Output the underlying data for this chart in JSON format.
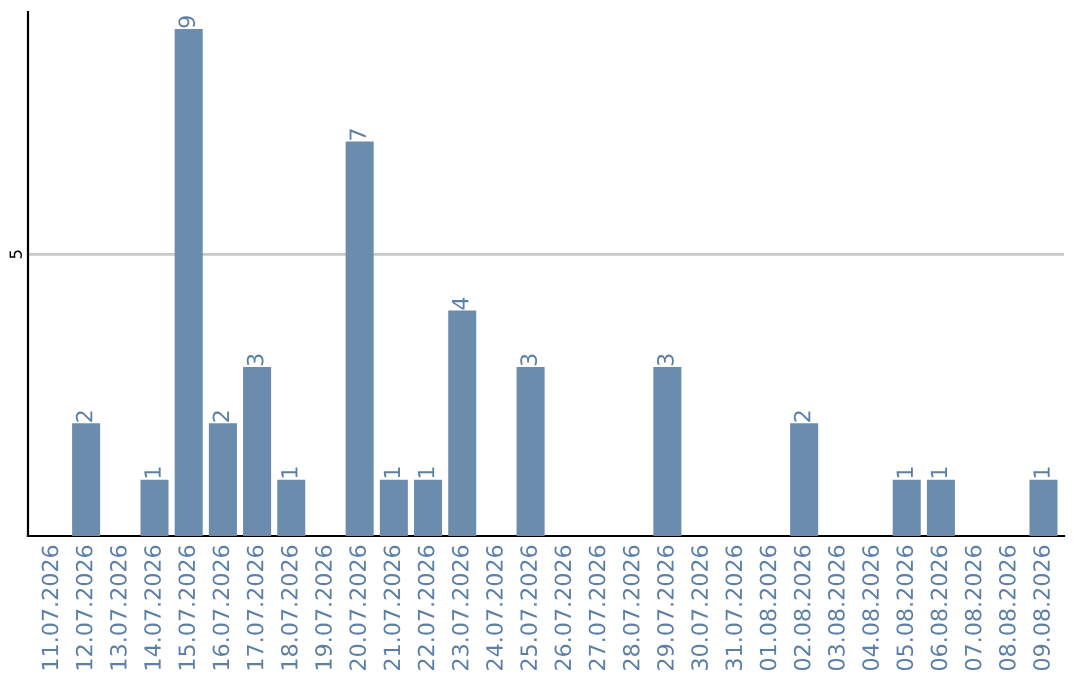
{
  "chart_data": {
    "type": "bar",
    "categories": [
      "11.07.2026",
      "12.07.2026",
      "13.07.2026",
      "14.07.2026",
      "15.07.2026",
      "16.07.2026",
      "17.07.2026",
      "18.07.2026",
      "19.07.2026",
      "20.07.2026",
      "21.07.2026",
      "22.07.2026",
      "23.07.2026",
      "24.07.2026",
      "25.07.2026",
      "26.07.2026",
      "27.07.2026",
      "28.07.2026",
      "29.07.2026",
      "30.07.2026",
      "31.07.2026",
      "01.08.2026",
      "02.08.2026",
      "03.08.2026",
      "04.08.2026",
      "05.08.2026",
      "06.08.2026",
      "07.08.2026",
      "08.08.2026",
      "09.08.2026"
    ],
    "values": [
      0,
      2,
      0,
      1,
      9,
      2,
      3,
      1,
      0,
      7,
      1,
      1,
      4,
      0,
      3,
      0,
      0,
      0,
      3,
      0,
      0,
      0,
      2,
      0,
      0,
      1,
      1,
      0,
      0,
      1
    ],
    "value_labels": [
      null,
      "2",
      null,
      "1",
      "9",
      "2",
      "3",
      "1",
      null,
      "7",
      "1",
      "1",
      "4",
      null,
      "3",
      null,
      null,
      null,
      "3",
      null,
      null,
      null,
      "2",
      null,
      null,
      "1",
      "1",
      null,
      null,
      "1"
    ],
    "color": "#6b8cad",
    "ylim": [
      0,
      9.3
    ],
    "yticks": [
      5
    ],
    "grid": "y"
  }
}
